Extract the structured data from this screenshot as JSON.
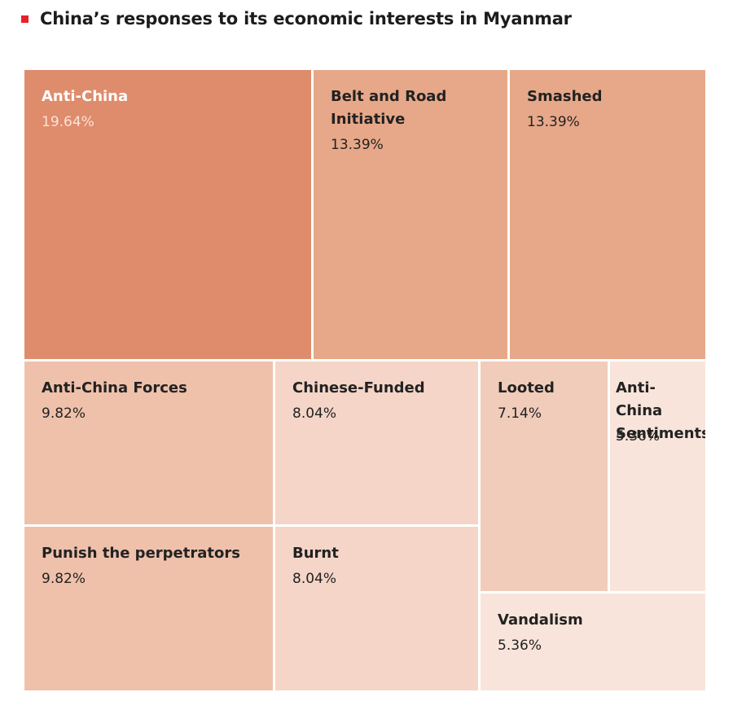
{
  "title": "China’s responses to its economic interests in Myanmar",
  "colors": {
    "marker": "#e8202a",
    "title_text": "#1c1c1c",
    "tile_text_dark": "#222222",
    "tile_text_light": "#ffffff",
    "tile_value_light": "#fbe3d6"
  },
  "chart_data": {
    "type": "treemap",
    "title": "China’s responses to its economic interests in Myanmar",
    "units": "%",
    "items": [
      {
        "label": "Anti-China",
        "value": 19.64,
        "value_text": "19.64%",
        "color": "#df8c6c"
      },
      {
        "label": "Belt and Road Initiative",
        "display_label": "Belt and Road\nInitiative",
        "value": 13.39,
        "value_text": "13.39%",
        "color": "#e7a889"
      },
      {
        "label": "Smashed",
        "value": 13.39,
        "value_text": "13.39%",
        "color": "#e7a889"
      },
      {
        "label": "Anti-China Forces",
        "value": 9.82,
        "value_text": "9.82%",
        "color": "#efc1ab"
      },
      {
        "label": "Punish the perpetrators",
        "value": 9.82,
        "value_text": "9.82%",
        "color": "#efc1ab"
      },
      {
        "label": "Chinese-Funded",
        "value": 8.04,
        "value_text": "8.04%",
        "color": "#f4d5c7"
      },
      {
        "label": "Burnt",
        "value": 8.04,
        "value_text": "8.04%",
        "color": "#f4d5c7"
      },
      {
        "label": "Looted",
        "value": 7.14,
        "value_text": "7.14%",
        "color": "#f2ccba"
      },
      {
        "label": "Anti-China Sentiments",
        "display_label": "Anti-China\nSentiments",
        "value": 5.36,
        "value_text": "5.36%",
        "color": "#f8e4db"
      },
      {
        "label": "Vandalism",
        "value": 5.36,
        "value_text": "5.36%",
        "color": "#f8e4db"
      }
    ]
  }
}
